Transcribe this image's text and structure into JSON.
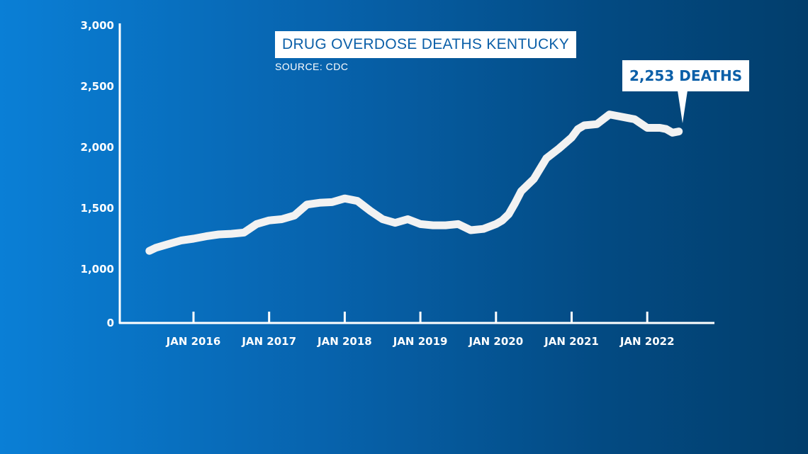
{
  "title": "DRUG OVERDOSE DEATHS KENTUCKY",
  "source": "SOURCE: CDC",
  "callout": {
    "label": "2,253 DEATHS"
  },
  "colors": {
    "line": "#f2f2f2",
    "axis": "#ffffff",
    "label_box": "#ffffff",
    "label_text": "#0b5fa8"
  },
  "chart_data": {
    "type": "line",
    "title": "DRUG OVERDOSE DEATHS KENTUCKY",
    "xlabel": "",
    "ylabel": "",
    "ylim": [
      0,
      3000
    ],
    "y_ticks": [
      0,
      1000,
      1500,
      2000,
      2500,
      3000
    ],
    "y_tick_labels": [
      "0",
      "1,000",
      "1,500",
      "2,000",
      "2,500",
      "3,000"
    ],
    "x_ticks": [
      "2016-01",
      "2017-01",
      "2018-01",
      "2019-01",
      "2020-01",
      "2021-01",
      "2022-01"
    ],
    "x_tick_labels": [
      "JAN 2016",
      "JAN 2017",
      "JAN 2018",
      "JAN 2019",
      "JAN 2020",
      "JAN 2021",
      "JAN 2022"
    ],
    "grid": false,
    "series": [
      {
        "name": "",
        "x": [
          "2015-06",
          "2015-07",
          "2015-09",
          "2015-11",
          "2016-01",
          "2016-03",
          "2016-05",
          "2016-07",
          "2016-09",
          "2016-11",
          "2017-01",
          "2017-03",
          "2017-05",
          "2017-07",
          "2017-09",
          "2017-11",
          "2018-01",
          "2018-03",
          "2018-05",
          "2018-07",
          "2018-09",
          "2018-11",
          "2019-01",
          "2019-03",
          "2019-05",
          "2019-07",
          "2019-09",
          "2019-11",
          "2020-01",
          "2020-02",
          "2020-03",
          "2020-04",
          "2020-05",
          "2020-07",
          "2020-09",
          "2020-11",
          "2021-01",
          "2021-02",
          "2021-03",
          "2021-05",
          "2021-07",
          "2021-09",
          "2021-11",
          "2022-01",
          "2022-03",
          "2022-04",
          "2022-05",
          "2022-06"
        ],
        "y": [
          1150,
          1175,
          1205,
          1235,
          1250,
          1270,
          1285,
          1290,
          1300,
          1370,
          1400,
          1410,
          1440,
          1530,
          1545,
          1550,
          1580,
          1560,
          1480,
          1410,
          1380,
          1410,
          1370,
          1360,
          1360,
          1370,
          1320,
          1330,
          1370,
          1400,
          1450,
          1540,
          1640,
          1740,
          1910,
          1990,
          2080,
          2150,
          2180,
          2190,
          2270,
          2250,
          2230,
          2160,
          2160,
          2150,
          2120,
          2130
        ]
      }
    ]
  }
}
